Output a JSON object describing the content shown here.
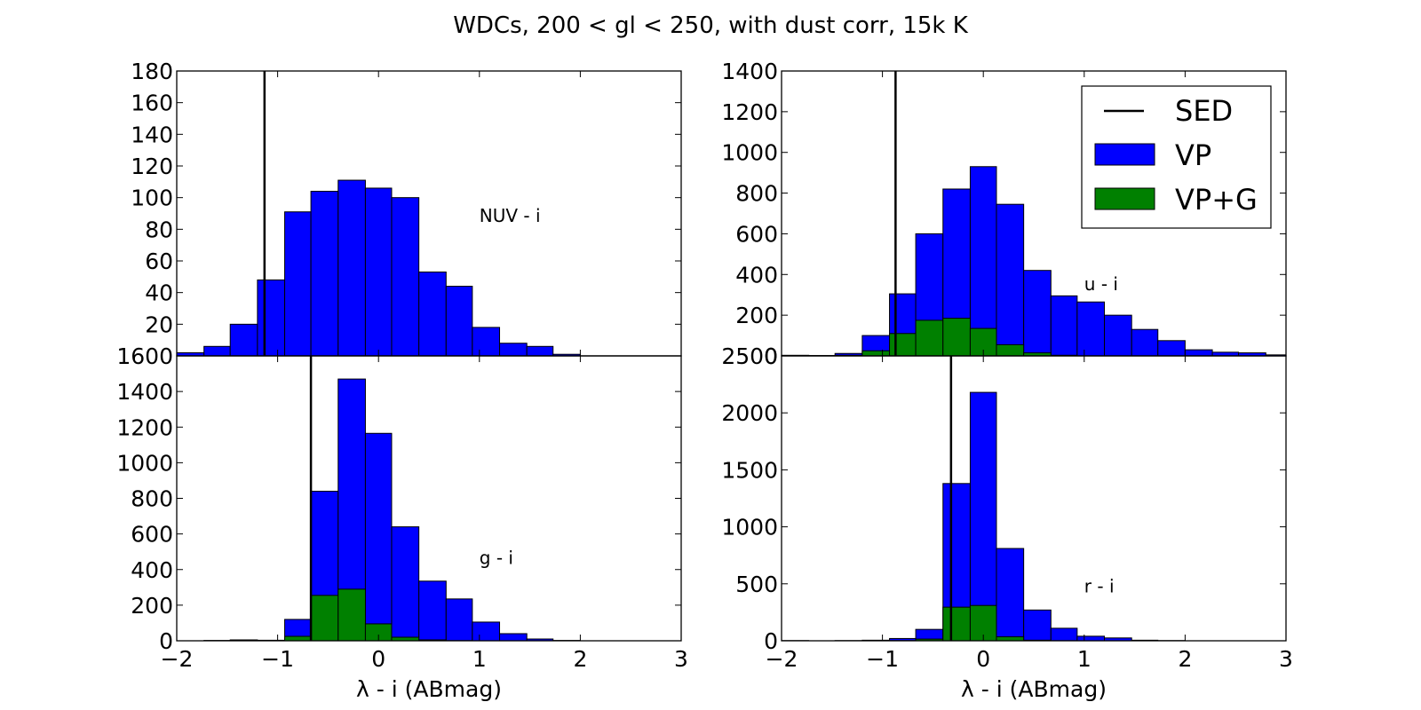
{
  "figure": {
    "title": "WDCs, 200 < gl < 250, with dust corr, 15k K",
    "legend": {
      "sed_label": "SED",
      "vp_label": "VP",
      "vpg_label": "VP+G",
      "placement": "top-right of top-right panel"
    },
    "colors": {
      "VP": "#0000ff",
      "VP+G": "#008000",
      "SED": "#000000"
    }
  },
  "chart_data": [
    {
      "type": "bar",
      "panel": "top-left",
      "annotation": "NUV - i",
      "xlabel": "",
      "ylabel": "",
      "xlim": [
        -2,
        3
      ],
      "ylim": [
        0,
        180
      ],
      "xticks": [
        -2,
        -1,
        0,
        1,
        2,
        3
      ],
      "yticks": [
        0,
        20,
        40,
        60,
        80,
        100,
        120,
        140,
        160,
        180
      ],
      "yticklabels": [
        "",
        "20",
        "40",
        "60",
        "80",
        "100",
        "120",
        "140",
        "160",
        "180"
      ],
      "bin_edges": [
        -2.0,
        -1.73,
        -1.47,
        -1.2,
        -0.93,
        -0.67,
        -0.4,
        -0.13,
        0.13,
        0.4,
        0.67,
        0.93,
        1.2,
        1.47,
        1.73,
        2.0
      ],
      "series": [
        {
          "name": "VP",
          "values": [
            2,
            6,
            20,
            48,
            91,
            104,
            111,
            106,
            100,
            53,
            44,
            18,
            8,
            6,
            1
          ]
        },
        {
          "name": "VP+G",
          "values": [
            0,
            0,
            0,
            0,
            0,
            0,
            0,
            0,
            0,
            0,
            0,
            0,
            0,
            0,
            0
          ]
        }
      ],
      "sed": -1.13
    },
    {
      "type": "bar",
      "panel": "top-right",
      "annotation": "u - i",
      "xlabel": "",
      "ylabel": "",
      "xlim": [
        -2,
        3
      ],
      "ylim": [
        0,
        1400
      ],
      "xticks": [
        -2,
        -1,
        0,
        1,
        2,
        3
      ],
      "yticks": [
        0,
        200,
        400,
        600,
        800,
        1000,
        1200,
        1400
      ],
      "yticklabels": [
        "0",
        "200",
        "400",
        "600",
        "800",
        "1000",
        "1200",
        "1400"
      ],
      "bin_edges": [
        -2.0,
        -1.73,
        -1.47,
        -1.2,
        -0.93,
        -0.67,
        -0.4,
        -0.13,
        0.13,
        0.4,
        0.67,
        0.93,
        1.2,
        1.47,
        1.73,
        2.0,
        2.27,
        2.53,
        2.8,
        3.07
      ],
      "series": [
        {
          "name": "VP",
          "values": [
            3,
            2,
            12,
            100,
            305,
            600,
            820,
            930,
            745,
            420,
            295,
            265,
            200,
            130,
            75,
            30,
            18,
            15,
            5
          ]
        },
        {
          "name": "VP+G",
          "values": [
            0,
            0,
            3,
            25,
            110,
            175,
            185,
            135,
            55,
            15,
            3,
            0,
            0,
            0,
            0,
            0,
            0,
            0,
            0
          ]
        }
      ],
      "sed": -0.87
    },
    {
      "type": "bar",
      "panel": "bottom-left",
      "annotation": "g - i",
      "xlabel": "λ - i (ABmag)",
      "ylabel": "",
      "xlim": [
        -2,
        3
      ],
      "ylim": [
        0,
        1600
      ],
      "xticks": [
        -2,
        -1,
        0,
        1,
        2,
        3
      ],
      "yticks": [
        0,
        200,
        400,
        600,
        800,
        1000,
        1200,
        1400,
        1600
      ],
      "yticklabels": [
        "0",
        "200",
        "400",
        "600",
        "800",
        "1000",
        "1200",
        "1400",
        "1600"
      ],
      "bin_edges": [
        -2.0,
        -1.73,
        -1.47,
        -1.2,
        -0.93,
        -0.67,
        -0.4,
        -0.13,
        0.13,
        0.4,
        0.67,
        0.93,
        1.2,
        1.47,
        1.73,
        2.0
      ],
      "series": [
        {
          "name": "VP",
          "values": [
            0,
            2,
            5,
            3,
            120,
            840,
            1470,
            1165,
            640,
            335,
            235,
            105,
            40,
            10,
            2
          ]
        },
        {
          "name": "VP+G",
          "values": [
            0,
            0,
            0,
            0,
            25,
            255,
            290,
            95,
            20,
            5,
            1,
            0,
            0,
            0,
            0
          ]
        }
      ],
      "sed": -0.67
    },
    {
      "type": "bar",
      "panel": "bottom-right",
      "annotation": "r - i",
      "xlabel": "λ - i (ABmag)",
      "ylabel": "",
      "xlim": [
        -2,
        3
      ],
      "ylim": [
        0,
        2500
      ],
      "xticks": [
        -2,
        -1,
        0,
        1,
        2,
        3
      ],
      "yticks": [
        0,
        500,
        1000,
        1500,
        2000,
        2500
      ],
      "yticklabels": [
        "0",
        "500",
        "1000",
        "1500",
        "2000",
        "2500"
      ],
      "bin_edges": [
        -2.0,
        -1.73,
        -1.47,
        -1.2,
        -0.93,
        -0.67,
        -0.4,
        -0.13,
        0.13,
        0.4,
        0.67,
        0.93,
        1.2,
        1.47,
        1.73,
        2.0
      ],
      "series": [
        {
          "name": "VP",
          "values": [
            2,
            0,
            2,
            5,
            20,
            100,
            1380,
            2180,
            810,
            270,
            110,
            40,
            25,
            5,
            2
          ]
        },
        {
          "name": "VP+G",
          "values": [
            0,
            0,
            0,
            0,
            2,
            15,
            295,
            310,
            35,
            5,
            1,
            0,
            0,
            0,
            0
          ]
        }
      ],
      "sed": -0.32
    }
  ]
}
